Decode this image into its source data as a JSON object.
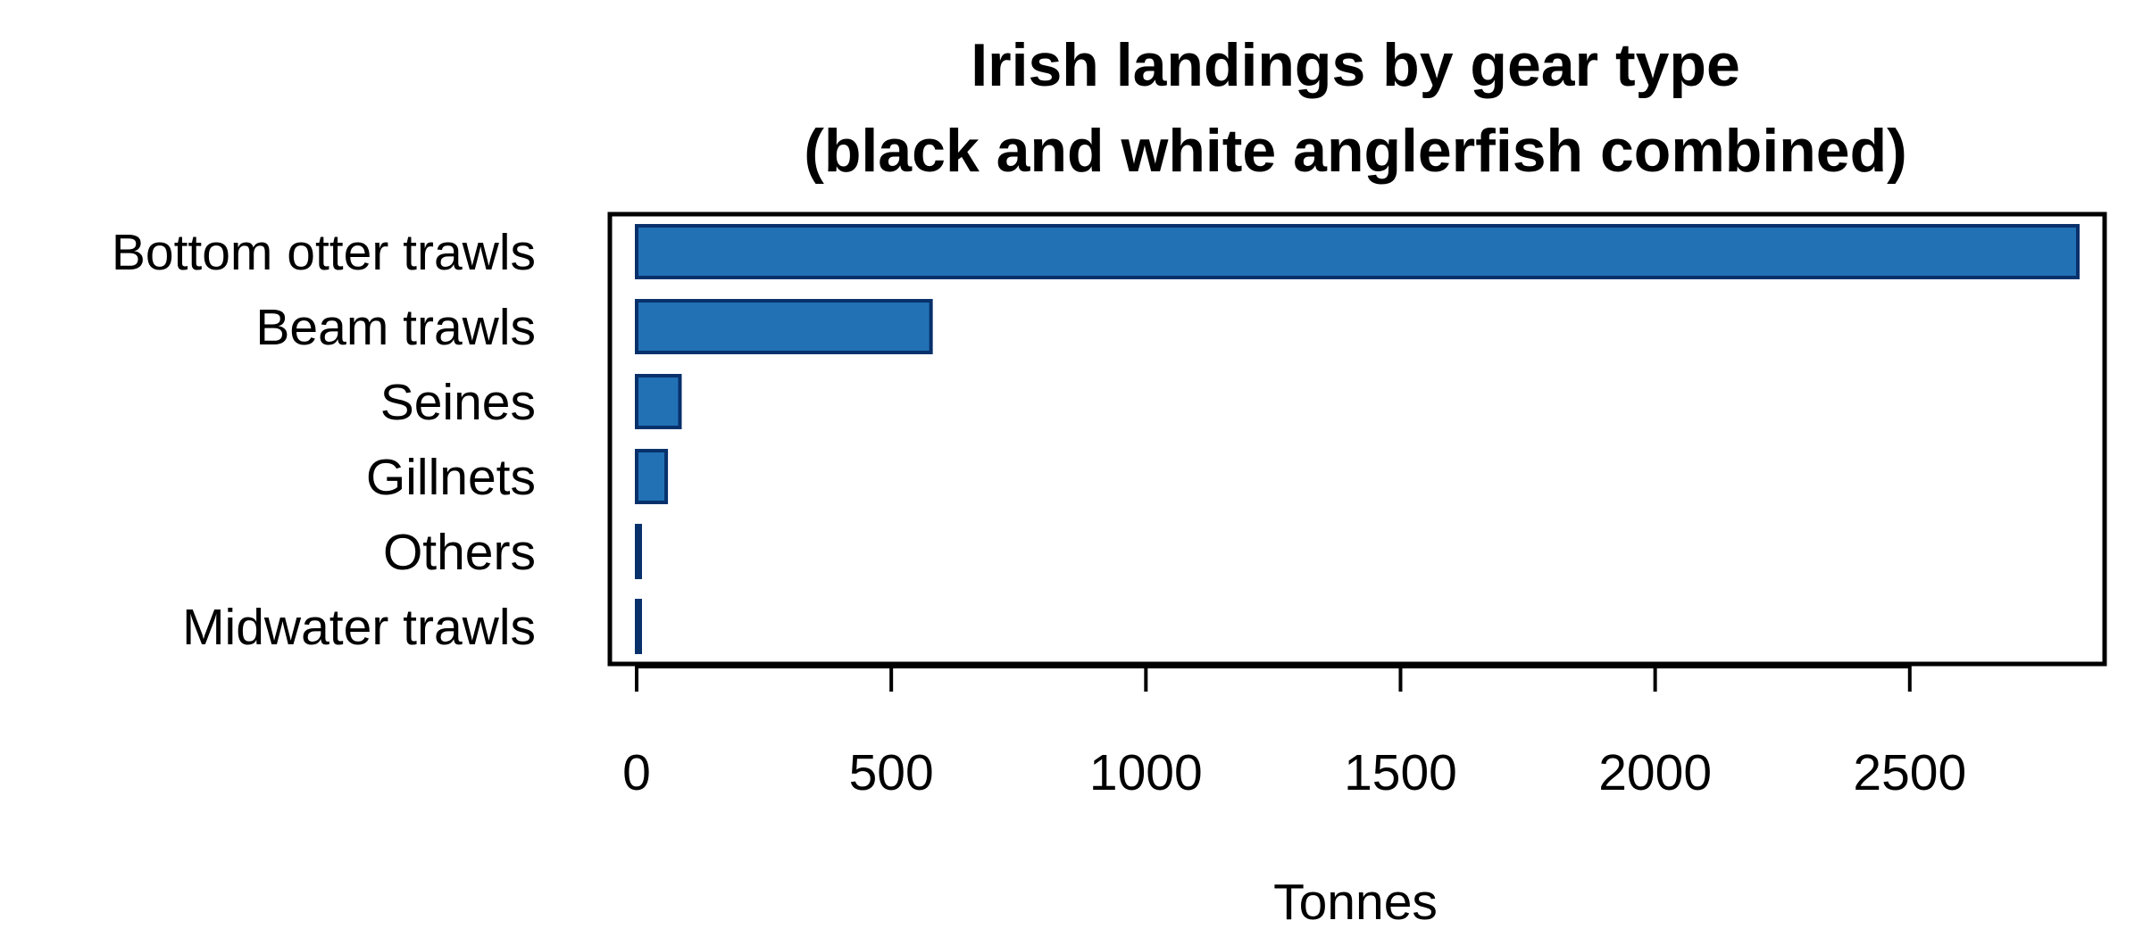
{
  "chart_data": {
    "type": "bar",
    "orientation": "horizontal",
    "title_line1": "Irish landings by gear type",
    "title_line2": "(black and white anglerfish combined)",
    "xlabel": "Tonnes",
    "ylabel": "",
    "categories": [
      "Bottom otter trawls",
      "Beam trawls",
      "Seines",
      "Gillnets",
      "Others",
      "Midwater trawls"
    ],
    "values": [
      2830,
      578,
      85,
      58,
      5,
      3
    ],
    "xlim": [
      0,
      2830
    ],
    "xticks": [
      0,
      500,
      1000,
      1500,
      2000,
      2500
    ],
    "xtick_labels": [
      "0",
      "500",
      "1000",
      "1500",
      "2000",
      "2500"
    ],
    "grid": false,
    "legend": "none",
    "colors": {
      "bar_fill": "#2271b5",
      "bar_stroke": "#08306b",
      "frame": "#000000"
    }
  }
}
